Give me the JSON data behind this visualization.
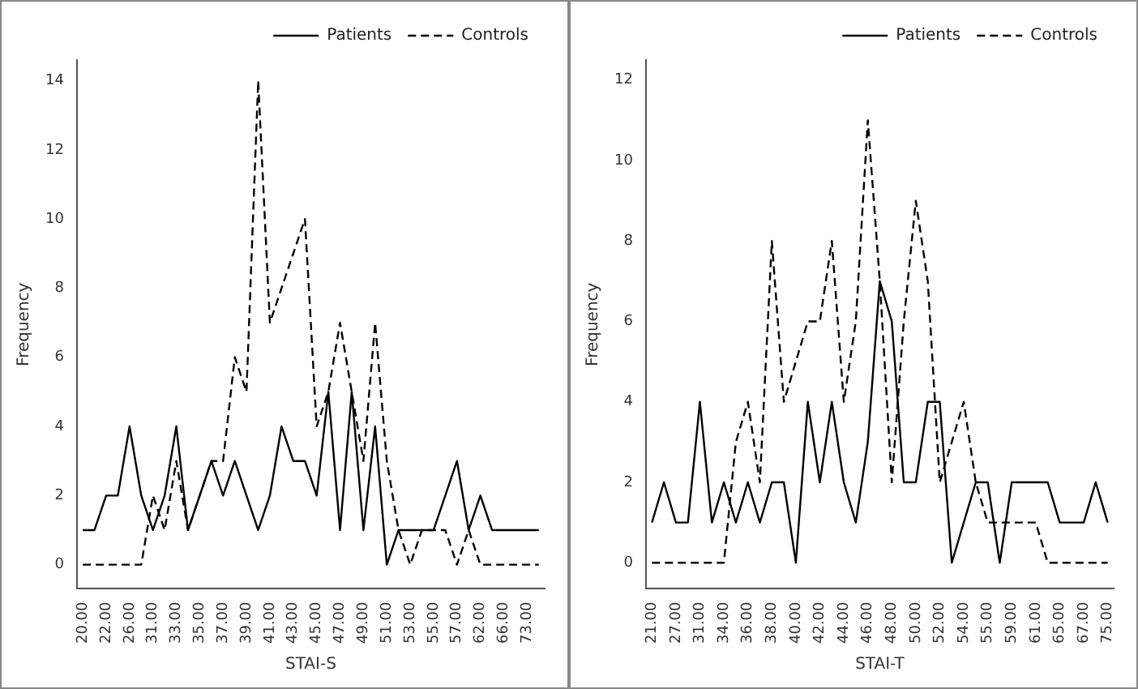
{
  "chart_data": [
    {
      "type": "line",
      "xlabel": "STAI-S",
      "ylabel": "Frequency",
      "categories": [
        "20.00",
        null,
        "22.00",
        null,
        "26.00",
        null,
        "31.00",
        null,
        "33.00",
        null,
        "35.00",
        null,
        "37.00",
        null,
        "39.00",
        null,
        "41.00",
        null,
        "43.00",
        null,
        "45.00",
        null,
        "47.00",
        null,
        "49.00",
        null,
        "51.00",
        null,
        "53.00",
        null,
        "55.00",
        null,
        "57.00",
        null,
        "62.00",
        null,
        "66.00",
        null,
        "73.00",
        null
      ],
      "series": [
        {
          "name": "Patients",
          "color": "#000000",
          "line_style": "solid",
          "values": [
            1,
            1,
            2,
            2,
            4,
            2,
            1,
            2,
            4,
            1,
            2,
            3,
            2,
            3,
            2,
            1,
            2,
            4,
            3,
            3,
            2,
            5,
            1,
            5,
            1,
            4,
            0,
            1,
            1,
            1,
            1,
            2,
            3,
            1,
            2,
            1,
            1,
            1,
            1,
            1
          ]
        },
        {
          "name": "Controls",
          "color": "#000000",
          "line_style": "dashed",
          "values": [
            0,
            0,
            0,
            0,
            0,
            0,
            2,
            1,
            3,
            1,
            2,
            3,
            3,
            6,
            5,
            14,
            7,
            8,
            9,
            10,
            4,
            5,
            7,
            5,
            3,
            7,
            3,
            1,
            0,
            1,
            1,
            1,
            0,
            1,
            0,
            0,
            0,
            0,
            0,
            0
          ]
        }
      ],
      "ylim": [
        -0.7,
        14.6
      ],
      "yticks": [
        0,
        2,
        4,
        6,
        8,
        10,
        12,
        14
      ],
      "grid": false,
      "legend": "top right",
      "marker": "none"
    },
    {
      "type": "line",
      "xlabel": "STAI-T",
      "ylabel": "Frequency",
      "categories": [
        "21.00",
        null,
        "27.00",
        null,
        "31.00",
        null,
        "34.00",
        null,
        "36.00",
        null,
        "38.00",
        null,
        "40.00",
        null,
        "42.00",
        null,
        "44.00",
        null,
        "46.00",
        null,
        "48.00",
        null,
        "50.00",
        null,
        "52.00",
        null,
        "54.00",
        null,
        "55.00",
        null,
        "59.00",
        null,
        "61.00",
        null,
        "65.00",
        null,
        "67.00",
        null,
        "75.00"
      ],
      "series": [
        {
          "name": "Patients",
          "color": "#000000",
          "line_style": "solid",
          "values": [
            1,
            2,
            1,
            1,
            4,
            1,
            2,
            1,
            2,
            1,
            2,
            2,
            0,
            4,
            2,
            4,
            2,
            1,
            3,
            7,
            6,
            2,
            2,
            4,
            4,
            0,
            1,
            2,
            2,
            0,
            2,
            2,
            2,
            2,
            1,
            1,
            1,
            2,
            1
          ]
        },
        {
          "name": "Controls",
          "color": "#000000",
          "line_style": "dashed",
          "values": [
            0,
            0,
            0,
            0,
            0,
            0,
            0,
            3,
            4,
            2,
            8,
            4,
            5,
            6,
            6,
            8,
            4,
            6,
            11,
            7,
            2,
            6,
            9,
            7,
            2,
            3,
            4,
            2,
            1,
            1,
            1,
            1,
            1,
            0,
            0,
            0,
            0,
            0,
            0
          ]
        }
      ],
      "ylim": [
        -0.65,
        12.5
      ],
      "yticks": [
        0,
        2,
        4,
        6,
        8,
        10,
        12
      ],
      "grid": false,
      "legend": "top right",
      "marker": "none"
    }
  ]
}
